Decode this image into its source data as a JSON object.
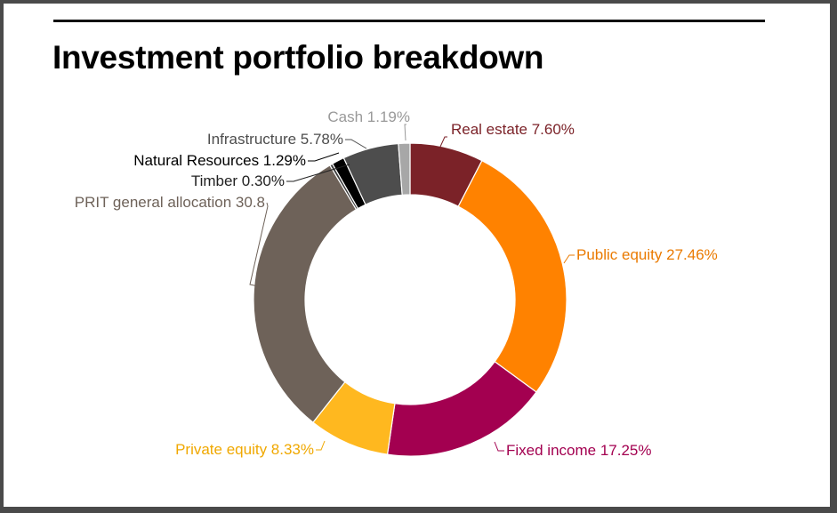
{
  "chart_data": {
    "type": "pie",
    "donut": true,
    "title": "Investment portfolio breakdown",
    "start_angle_deg": 0,
    "slices": [
      {
        "name": "Real estate",
        "value": 7.6,
        "label": "Real estate 7.60%",
        "color": "#7b2228",
        "label_color": "#7b2228"
      },
      {
        "name": "Public equity",
        "value": 27.46,
        "label": "Public equity 27.46%",
        "color": "#ff8200",
        "label_color": "#ea7a00"
      },
      {
        "name": "Fixed income",
        "value": 17.25,
        "label": "Fixed income 17.25%",
        "color": "#a30050",
        "label_color": "#a30050"
      },
      {
        "name": "Private equity",
        "value": 8.33,
        "label": "Private equity 8.33%",
        "color": "#ffb81f",
        "label_color": "#f0a800"
      },
      {
        "name": "PRIT general allocation",
        "value": 30.8,
        "label": "PRIT general allocation 30.8",
        "color": "#6e6259",
        "label_color": "#6e6259"
      },
      {
        "name": "Timber",
        "value": 0.3,
        "label": "Timber 0.30%",
        "color": "#3d3d3d",
        "label_color": "#222222"
      },
      {
        "name": "Natural Resources",
        "value": 1.29,
        "label": "Natural Resources 1.29%",
        "color": "#000000",
        "label_color": "#000000"
      },
      {
        "name": "Infrastructure",
        "value": 5.78,
        "label": "Infrastructure 5.78%",
        "color": "#4d4d4d",
        "label_color": "#4d4d4d"
      },
      {
        "name": "Cash",
        "value": 1.19,
        "label": "Cash 1.19%",
        "color": "#a7a7a7",
        "label_color": "#999999"
      }
    ]
  }
}
